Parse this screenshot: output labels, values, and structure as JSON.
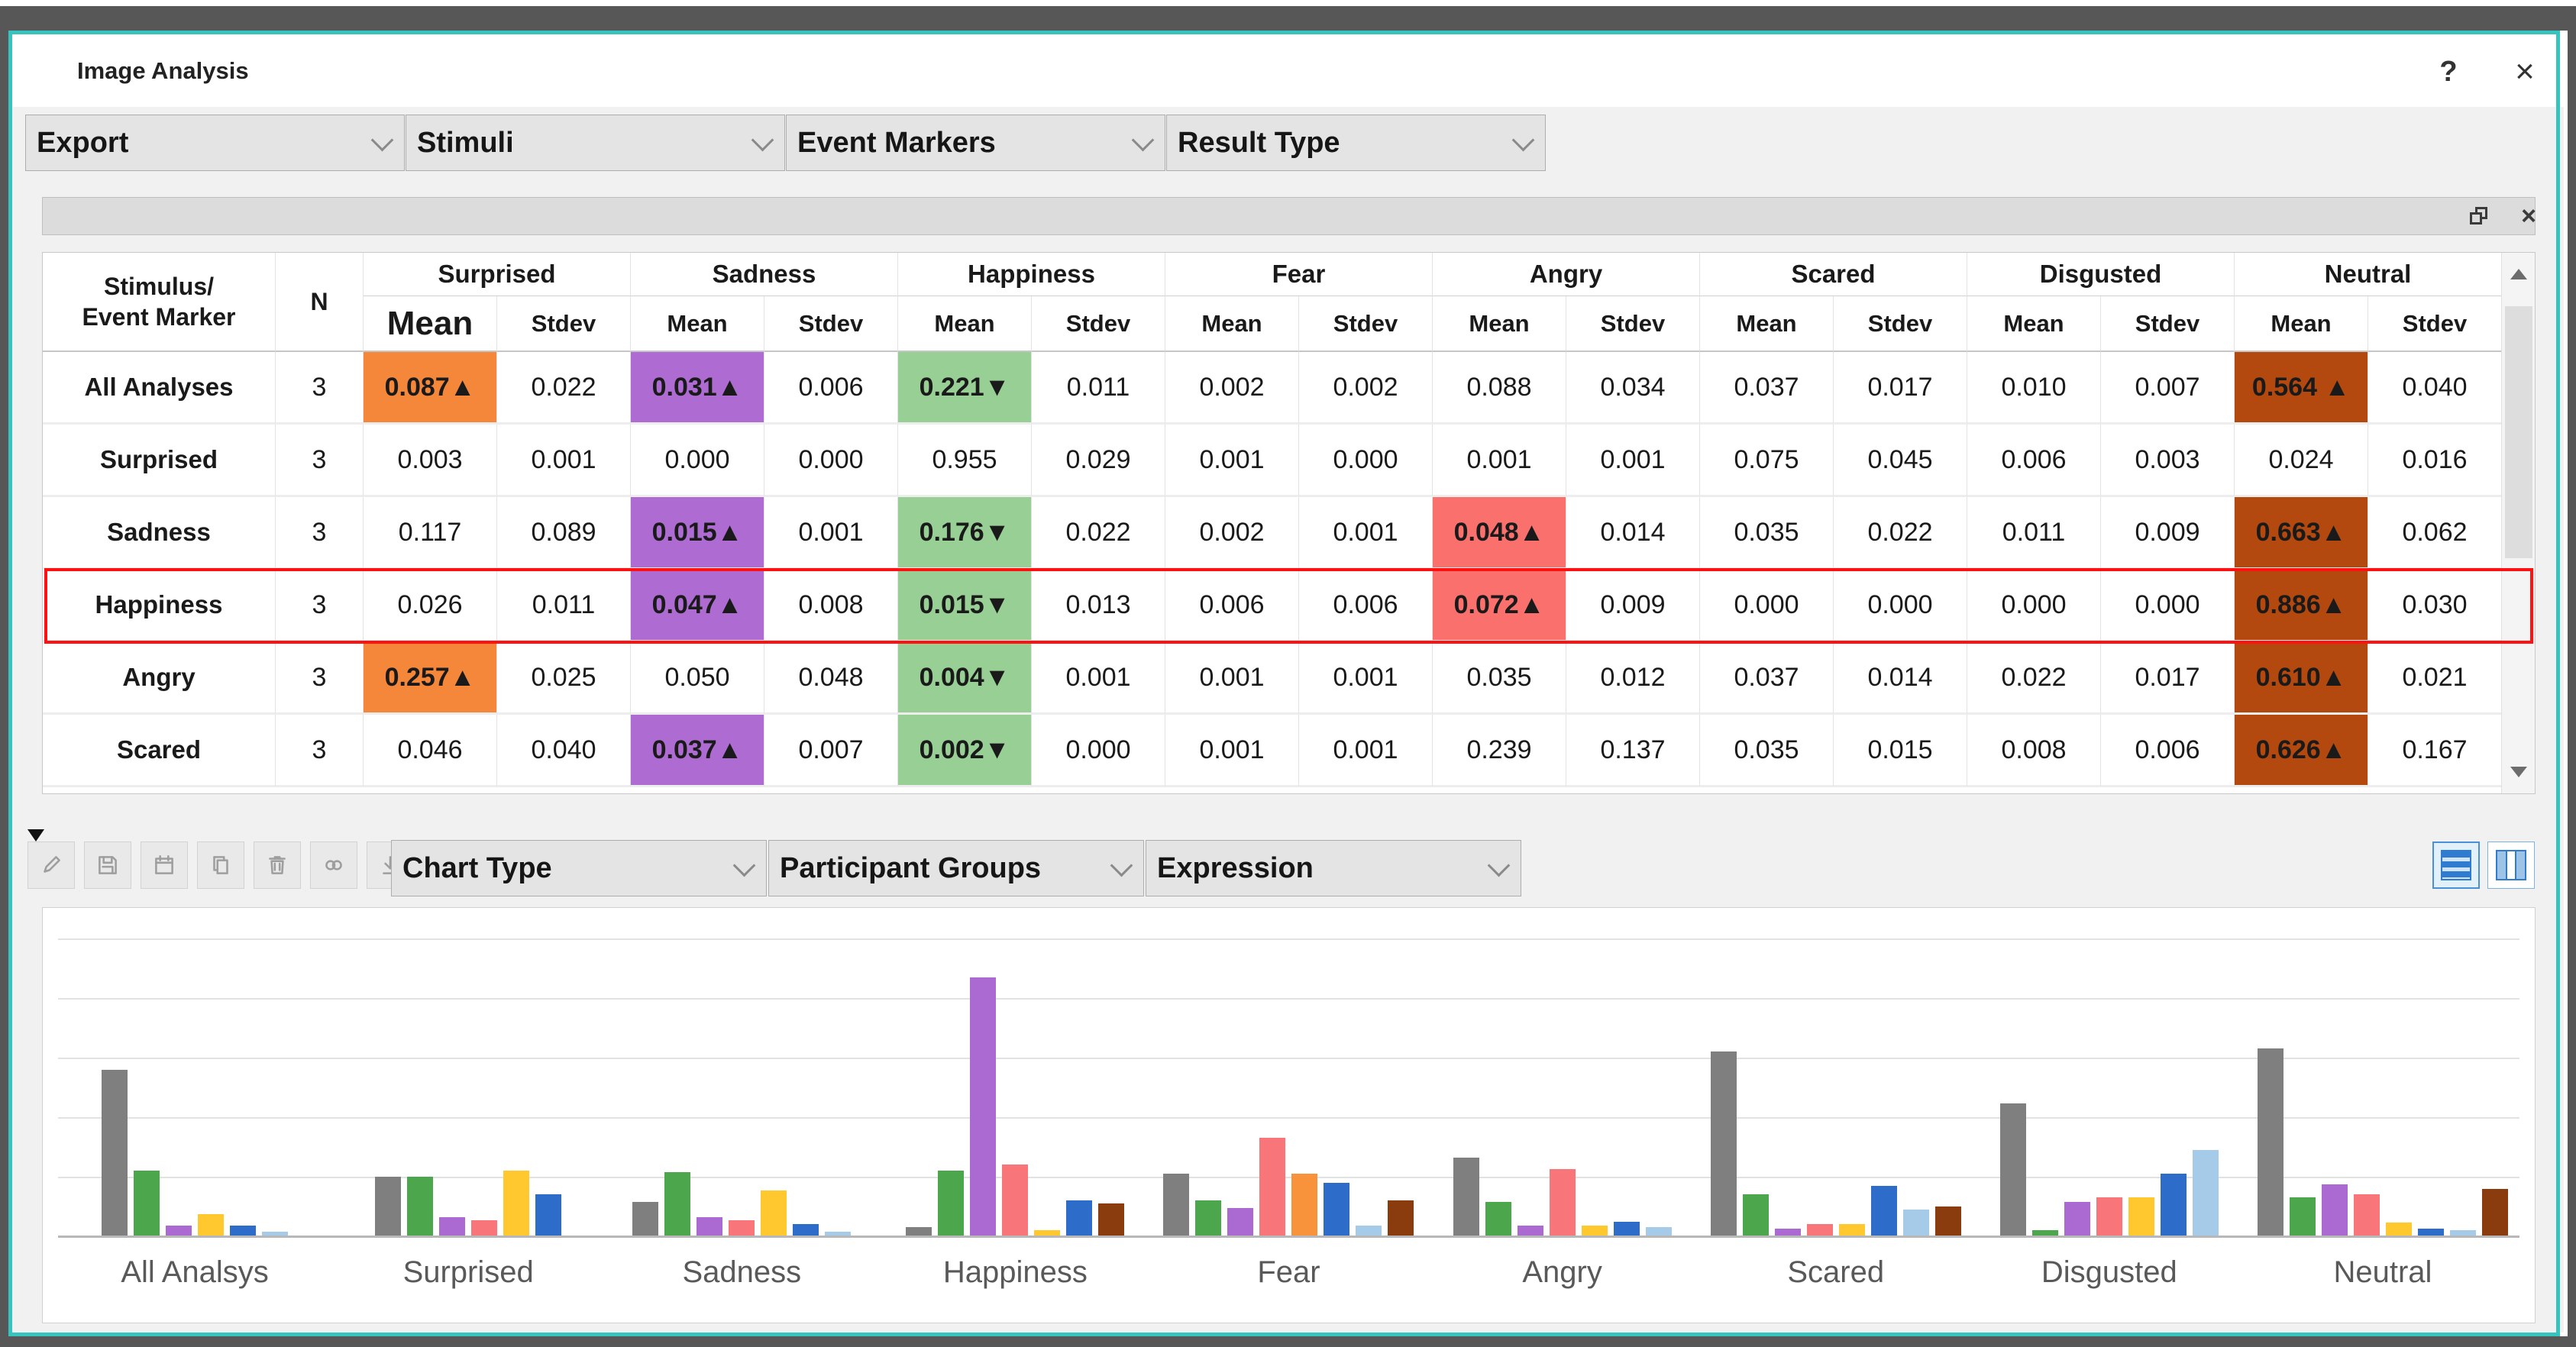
{
  "window": {
    "title": "Image Analysis",
    "help_label": "?",
    "close_label": "×"
  },
  "top_dropdowns": [
    {
      "label": "Export"
    },
    {
      "label": "Stimuli"
    },
    {
      "label": "Event Markers"
    },
    {
      "label": "Result Type"
    }
  ],
  "table": {
    "corner_header": [
      "Stimulus/",
      "Event Marker"
    ],
    "n_header": "N",
    "groups": [
      "Surprised",
      "Sadness",
      "Happiness",
      "Fear",
      "Angry",
      "Scared",
      "Disgusted",
      "Neutral"
    ],
    "sub_headers": [
      "Mean",
      "Stdev"
    ],
    "selected_row_index": 3,
    "rows": [
      {
        "label": "All Analyses",
        "n": "3",
        "cells": [
          "0.087▲",
          "0.022",
          "0.031▲",
          "0.006",
          "0.221▼",
          "0.011",
          "0.002",
          "0.002",
          "0.088",
          "0.034",
          "0.037",
          "0.017",
          "0.010",
          "0.007",
          "0.564 ▲",
          "0.040"
        ],
        "hl": {
          "0": "orange",
          "2": "purple",
          "4": "green",
          "14": "brown"
        }
      },
      {
        "label": "Surprised",
        "n": "3",
        "cells": [
          "0.003",
          "0.001",
          "0.000",
          "0.000",
          "0.955",
          "0.029",
          "0.001",
          "0.000",
          "0.001",
          "0.001",
          "0.075",
          "0.045",
          "0.006",
          "0.003",
          "0.024",
          "0.016"
        ],
        "hl": {}
      },
      {
        "label": "Sadness",
        "n": "3",
        "cells": [
          "0.117",
          "0.089",
          "0.015▲",
          "0.001",
          "0.176▼",
          "0.022",
          "0.002",
          "0.001",
          "0.048▲",
          "0.014",
          "0.035",
          "0.022",
          "0.011",
          "0.009",
          "0.663▲",
          "0.062"
        ],
        "hl": {
          "2": "purple",
          "4": "green",
          "8": "red",
          "14": "brown"
        }
      },
      {
        "label": "Happiness",
        "n": "3",
        "cells": [
          "0.026",
          "0.011",
          "0.047▲",
          "0.008",
          "0.015▼",
          "0.013",
          "0.006",
          "0.006",
          "0.072▲",
          "0.009",
          "0.000",
          "0.000",
          "0.000",
          "0.000",
          "0.886▲",
          "0.030"
        ],
        "hl": {
          "2": "purple",
          "4": "green",
          "8": "red",
          "14": "brown"
        }
      },
      {
        "label": "Angry",
        "n": "3",
        "cells": [
          "0.257▲",
          "0.025",
          "0.050",
          "0.048",
          "0.004▼",
          "0.001",
          "0.001",
          "0.001",
          "0.035",
          "0.012",
          "0.037",
          "0.014",
          "0.022",
          "0.017",
          "0.610▲",
          "0.021"
        ],
        "hl": {
          "0": "orange",
          "4": "green",
          "14": "brown"
        }
      },
      {
        "label": "Scared",
        "n": "3",
        "cells": [
          "0.046",
          "0.040",
          "0.037▲",
          "0.007",
          "0.002▼",
          "0.000",
          "0.001",
          "0.001",
          "0.239",
          "0.137",
          "0.035",
          "0.015",
          "0.008",
          "0.006",
          "0.626▲",
          "0.167"
        ],
        "hl": {
          "2": "purple",
          "4": "green",
          "14": "brown"
        }
      }
    ]
  },
  "chart_toolbar": {
    "tool_icons": [
      "pencil",
      "save",
      "calendar",
      "copy",
      "trash",
      "link",
      "pin"
    ],
    "dropdowns": [
      {
        "label": "Chart Type"
      },
      {
        "label": "Participant Groups"
      },
      {
        "label": "Expression"
      }
    ]
  },
  "chart_data": {
    "type": "bar",
    "title": "",
    "xlabel": "",
    "ylabel": "",
    "ylim": [
      0,
      1.0
    ],
    "grid": true,
    "gridline_step": 0.2,
    "legend": false,
    "categories": [
      "All Analsys",
      "Surprised",
      "Sadness",
      "Happiness",
      "Fear",
      "Angry",
      "Scared",
      "Disgusted",
      "Neutral"
    ],
    "series": [
      {
        "name": "gray",
        "color": "#7F7F7F",
        "values": [
          0.56,
          0.2,
          0.115,
          0.03,
          0.21,
          0.265,
          0.62,
          0.445,
          0.63
        ]
      },
      {
        "name": "green",
        "color": "#4CA64C",
        "values": [
          0.22,
          0.2,
          0.215,
          0.22,
          0.12,
          0.115,
          0.14,
          0.02,
          0.13
        ]
      },
      {
        "name": "purple",
        "color": "#AB6AD2",
        "values": [
          0.035,
          0.065,
          0.065,
          0.87,
          0.095,
          0.035,
          0.025,
          0.115,
          0.175
        ]
      },
      {
        "name": "red",
        "color": "#F87579",
        "values": [
          0,
          0.055,
          0.055,
          0.24,
          0.33,
          0.225,
          0.04,
          0.13,
          0.14
        ]
      },
      {
        "name": "orange",
        "color": "#F8933C",
        "values": [
          0,
          0,
          0,
          0,
          0.21,
          0,
          0,
          0,
          0
        ]
      },
      {
        "name": "yellow",
        "color": "#FFC82E",
        "values": [
          0.075,
          0.22,
          0.155,
          0.02,
          0,
          0.035,
          0.04,
          0.13,
          0.045
        ]
      },
      {
        "name": "blue",
        "color": "#2D6DC9",
        "values": [
          0.035,
          0.14,
          0.04,
          0.12,
          0.18,
          0.05,
          0.17,
          0.21,
          0.025
        ]
      },
      {
        "name": "lightblue",
        "color": "#A6CBE8",
        "values": [
          0.015,
          0,
          0.015,
          0,
          0.035,
          0.03,
          0.09,
          0.29,
          0.02
        ]
      },
      {
        "name": "brown",
        "color": "#8A3C0F",
        "values": [
          0,
          0,
          0,
          0.11,
          0.12,
          0,
          0.1,
          0,
          0.16
        ]
      }
    ]
  }
}
